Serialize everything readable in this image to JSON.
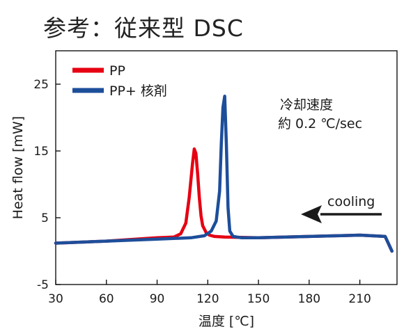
{
  "title": "参考：従来型 DSC",
  "chart_data": {
    "type": "line",
    "xlabel": "温度 [℃]",
    "ylabel": "Heat flow [mW]",
    "xlim": [
      30,
      232
    ],
    "ylim": [
      -5,
      30
    ],
    "xticks": [
      30,
      60,
      90,
      120,
      150,
      180,
      210
    ],
    "yticks": [
      -5,
      5,
      15,
      25
    ],
    "grid": false,
    "legend_position": "top-left",
    "series": [
      {
        "name": "PP",
        "color": "#e60012",
        "x": [
          30,
          60,
          90,
          100,
          104,
          107,
          109,
          111,
          112,
          113,
          114,
          115,
          116,
          117,
          119,
          121,
          124,
          130,
          150,
          180,
          210,
          225,
          229
        ],
        "y": [
          1.2,
          1.5,
          2.0,
          2.1,
          2.6,
          4.2,
          8.0,
          13.2,
          15.3,
          14.6,
          11.5,
          8.0,
          5.3,
          3.8,
          2.8,
          2.4,
          2.2,
          2.1,
          2.0,
          2.2,
          2.4,
          2.2,
          0.0
        ]
      },
      {
        "name": "PP+ 核剤",
        "color": "#1d4e9a",
        "x": [
          30,
          60,
          90,
          110,
          118,
          122,
          125,
          127,
          128,
          129,
          130,
          131,
          132,
          133,
          135,
          140,
          150,
          180,
          210,
          225,
          229
        ],
        "y": [
          1.2,
          1.5,
          1.8,
          2.0,
          2.3,
          3.0,
          4.5,
          9.0,
          16.0,
          21.5,
          23.2,
          16.0,
          6.5,
          3.0,
          2.2,
          2.0,
          2.0,
          2.2,
          2.4,
          2.2,
          0.0
        ]
      }
    ],
    "annotations": [
      {
        "text": "冷却速度"
      },
      {
        "text": "約 0.2 ℃/sec"
      },
      {
        "text": "cooling",
        "arrow": "left"
      }
    ]
  }
}
